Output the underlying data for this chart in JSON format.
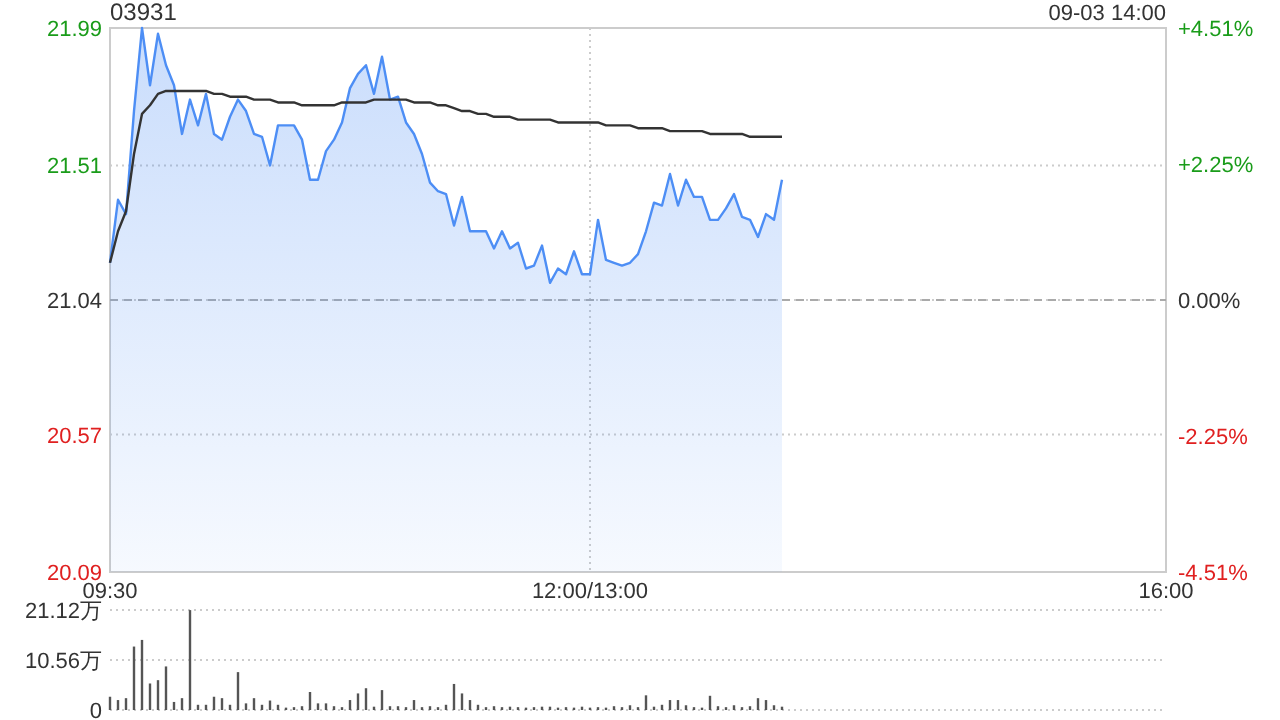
{
  "chart_data": [
    {
      "type": "area",
      "title": "03931",
      "annotations": [
        "09-03 14:00"
      ],
      "categories": [
        "09:30",
        null,
        null,
        null,
        null,
        null,
        null,
        null,
        null,
        null,
        null,
        null,
        null,
        null,
        null,
        null,
        null,
        null,
        null,
        null,
        null,
        null,
        null,
        null,
        null,
        null,
        null,
        null,
        null,
        null,
        null,
        null,
        null,
        null,
        null,
        null,
        null,
        null,
        null,
        null,
        null,
        null,
        null,
        null,
        null,
        null,
        null,
        null,
        null,
        null,
        null,
        null,
        null,
        null,
        null,
        null,
        null,
        null,
        null,
        null,
        "12:00/13:00",
        null,
        null,
        null,
        null,
        null,
        null,
        null,
        null,
        null,
        null,
        null,
        null,
        null,
        null,
        null,
        null,
        null,
        null,
        null,
        null,
        null,
        null,
        null,
        null,
        null,
        null,
        null,
        null,
        null,
        null,
        null,
        null,
        null,
        null,
        null,
        null,
        null,
        null,
        null,
        null,
        null,
        null,
        null,
        null,
        null,
        null,
        null,
        null,
        null,
        null,
        null,
        null,
        null,
        null,
        null,
        null,
        null,
        null,
        null,
        null,
        null,
        null,
        null,
        null,
        null,
        null,
        null,
        null,
        null,
        null,
        null,
        "16:00"
      ],
      "series": [
        {
          "color": "#4d8ef5",
          "values": [
            21.17,
            21.39,
            21.34,
            21.7,
            21.99,
            21.79,
            21.97,
            21.86,
            21.79,
            21.62,
            21.74,
            21.65,
            21.76,
            21.62,
            21.6,
            21.68,
            21.74,
            21.7,
            21.62,
            21.61,
            21.51,
            21.65,
            21.65,
            21.65,
            21.6,
            21.46,
            21.46,
            21.56,
            21.6,
            21.66,
            21.78,
            21.83,
            21.86,
            21.76,
            21.89,
            21.74,
            21.75,
            21.66,
            21.62,
            21.55,
            21.45,
            21.42,
            21.41,
            21.3,
            21.4,
            21.28,
            21.28,
            21.28,
            21.22,
            21.28,
            21.22,
            21.24,
            21.15,
            21.16,
            21.23,
            21.1,
            21.15,
            21.13,
            21.21,
            21.13,
            21.13,
            21.32,
            21.18,
            21.17,
            21.16,
            21.17,
            21.2,
            21.28,
            21.38,
            21.37,
            21.48,
            21.37,
            21.46,
            21.4,
            21.4,
            21.32,
            21.32,
            21.36,
            21.41,
            21.33,
            21.32,
            21.26,
            21.34,
            21.32,
            21.46,
            null,
            null,
            null,
            null,
            null,
            null,
            null,
            null,
            null,
            null,
            null,
            null,
            null,
            null,
            null,
            null,
            null,
            null,
            null,
            null,
            null,
            null,
            null,
            null,
            null,
            null,
            null,
            null,
            null,
            null,
            null,
            null,
            null,
            null,
            null,
            null,
            null,
            null,
            null,
            null,
            null,
            null,
            null,
            null,
            null,
            null,
            null,
            null
          ]
        },
        {
          "type": "line",
          "color": "#333333",
          "values": [
            21.17,
            21.28,
            21.35,
            21.55,
            21.69,
            21.72,
            21.76,
            21.77,
            21.77,
            21.77,
            21.77,
            21.77,
            21.77,
            21.76,
            21.76,
            21.75,
            21.75,
            21.75,
            21.74,
            21.74,
            21.74,
            21.73,
            21.73,
            21.73,
            21.72,
            21.72,
            21.72,
            21.72,
            21.72,
            21.73,
            21.73,
            21.73,
            21.73,
            21.74,
            21.74,
            21.74,
            21.74,
            21.74,
            21.73,
            21.73,
            21.73,
            21.72,
            21.72,
            21.71,
            21.7,
            21.7,
            21.69,
            21.69,
            21.68,
            21.68,
            21.68,
            21.67,
            21.67,
            21.67,
            21.67,
            21.67,
            21.66,
            21.66,
            21.66,
            21.66,
            21.66,
            21.66,
            21.65,
            21.65,
            21.65,
            21.65,
            21.64,
            21.64,
            21.64,
            21.64,
            21.63,
            21.63,
            21.63,
            21.63,
            21.63,
            21.62,
            21.62,
            21.62,
            21.62,
            21.62,
            21.61,
            21.61,
            21.61,
            21.61,
            21.61,
            null,
            null,
            null,
            null,
            null,
            null,
            null,
            null,
            null,
            null,
            null,
            null,
            null,
            null,
            null,
            null,
            null,
            null,
            null,
            null,
            null,
            null,
            null,
            null,
            null,
            null,
            null,
            null,
            null,
            null,
            null,
            null,
            null,
            null,
            null,
            null,
            null,
            null,
            null,
            null,
            null,
            null,
            null,
            null,
            null,
            null,
            null,
            null
          ]
        }
      ],
      "ylim": [
        20.09,
        21.99
      ],
      "yticks": [
        21.99,
        21.51,
        21.04,
        20.57,
        20.09
      ],
      "y2lim": [
        -4.51,
        4.51
      ],
      "y2ticks": [
        {
          "value": 4.51,
          "label": "+4.51%"
        },
        {
          "value": 2.25,
          "label": "+2.25%"
        },
        {
          "value": 0,
          "label": "0.00%"
        },
        {
          "value": -2.25,
          "label": "-2.25%"
        },
        {
          "value": -4.51,
          "label": "-4.51%"
        }
      ],
      "ref_lines": [
        {
          "axis": "y",
          "value": 21.04,
          "line_style": "dashed",
          "color": "#aaaaaa"
        }
      ],
      "grid": true
    },
    {
      "type": "bar",
      "color": "#555555",
      "tick_labels": "y",
      "grid": "y",
      "categories": [
        null,
        null,
        null,
        null,
        null,
        null,
        null,
        null,
        null,
        null,
        null,
        null,
        null,
        null,
        null,
        null,
        null,
        null,
        null,
        null,
        null,
        null,
        null,
        null,
        null,
        null,
        null,
        null,
        null,
        null,
        null,
        null,
        null,
        null,
        null,
        null,
        null,
        null,
        null,
        null,
        null,
        null,
        null,
        null,
        null,
        null,
        null,
        null,
        null,
        null,
        null,
        null,
        null,
        null,
        null,
        null,
        null,
        null,
        null,
        null,
        null,
        null,
        null,
        null,
        null,
        null,
        null,
        null,
        null,
        null,
        null,
        null,
        null,
        null,
        null,
        null,
        null,
        null,
        null,
        null,
        null,
        null,
        null,
        null,
        null,
        null,
        null,
        null,
        null,
        null,
        null,
        null,
        null,
        null,
        null,
        null,
        null,
        null,
        null,
        null,
        null,
        null,
        null,
        null,
        null,
        null,
        null,
        null,
        null,
        null,
        null,
        null,
        null,
        null,
        null,
        null,
        null,
        null,
        null,
        null,
        null,
        null,
        null,
        null,
        null,
        null,
        null,
        null,
        null,
        null,
        null,
        null,
        null
      ],
      "values": [
        2.8,
        2.1,
        2.5,
        13.4,
        14.8,
        5.6,
        6.3,
        9.2,
        1.7,
        2.5,
        21.1,
        1.1,
        1.1,
        2.8,
        2.5,
        1.1,
        8,
        1.4,
        2.5,
        1.1,
        2,
        1.1,
        0.5,
        0.6,
        0.8,
        3.8,
        1.4,
        1.4,
        0.8,
        0.6,
        2.1,
        3.5,
        4.6,
        0.7,
        4.2,
        0.8,
        0.8,
        0.6,
        2.1,
        0.6,
        0.8,
        0.6,
        1.1,
        5.5,
        3.5,
        2.1,
        1.1,
        0.6,
        0.8,
        0.6,
        0.7,
        0.6,
        0.5,
        0.6,
        0.7,
        0.7,
        0.5,
        0.6,
        0.5,
        0.7,
        0.5,
        0.6,
        0.5,
        0.8,
        0.6,
        1,
        0.6,
        3.1,
        0.7,
        1.1,
        2.1,
        2.1,
        1,
        0.6,
        0.5,
        3,
        0.8,
        0.6,
        1,
        0.6,
        0.8,
        2.5,
        2.1,
        1,
        0.7,
        null,
        null,
        null,
        null,
        null,
        null,
        null,
        null,
        null,
        null,
        null,
        null,
        null,
        null,
        null,
        null,
        null,
        null,
        null,
        null,
        null,
        null,
        null,
        null,
        null,
        null,
        null,
        null,
        null,
        null,
        null,
        null,
        null,
        null,
        null,
        null,
        null,
        null,
        null,
        null,
        null,
        null,
        null,
        null,
        null,
        null,
        null,
        null
      ],
      "ylim": [
        0,
        21.12
      ],
      "yticks": [
        {
          "value": 21.12,
          "label": "21.12万"
        },
        {
          "value": 10.56,
          "label": "10.56万"
        },
        0
      ]
    }
  ]
}
